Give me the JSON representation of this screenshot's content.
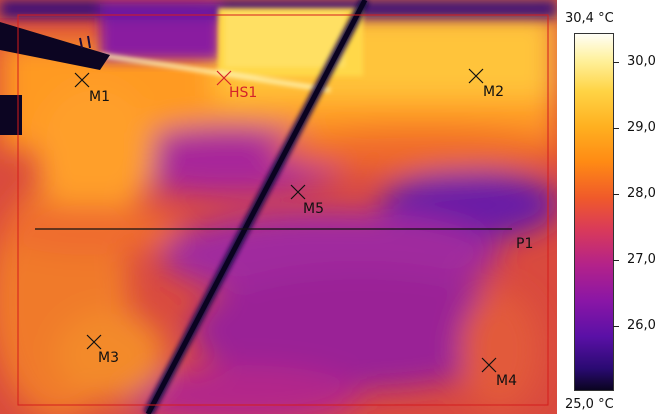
{
  "markers": {
    "m1": "M1",
    "hs1": "HS1",
    "m2": "M2",
    "m5": "M5",
    "p1": "P1",
    "m3": "M3",
    "m4": "M4"
  },
  "scale": {
    "max_label": "30,4 °C",
    "min_label": "25,0 °C",
    "ticks": [
      "30,0",
      "29,0",
      "28,0",
      "27,0",
      "26,0"
    ]
  },
  "colors": {
    "hot_marker": "#d4232a",
    "frame": "#d41c1c"
  }
}
